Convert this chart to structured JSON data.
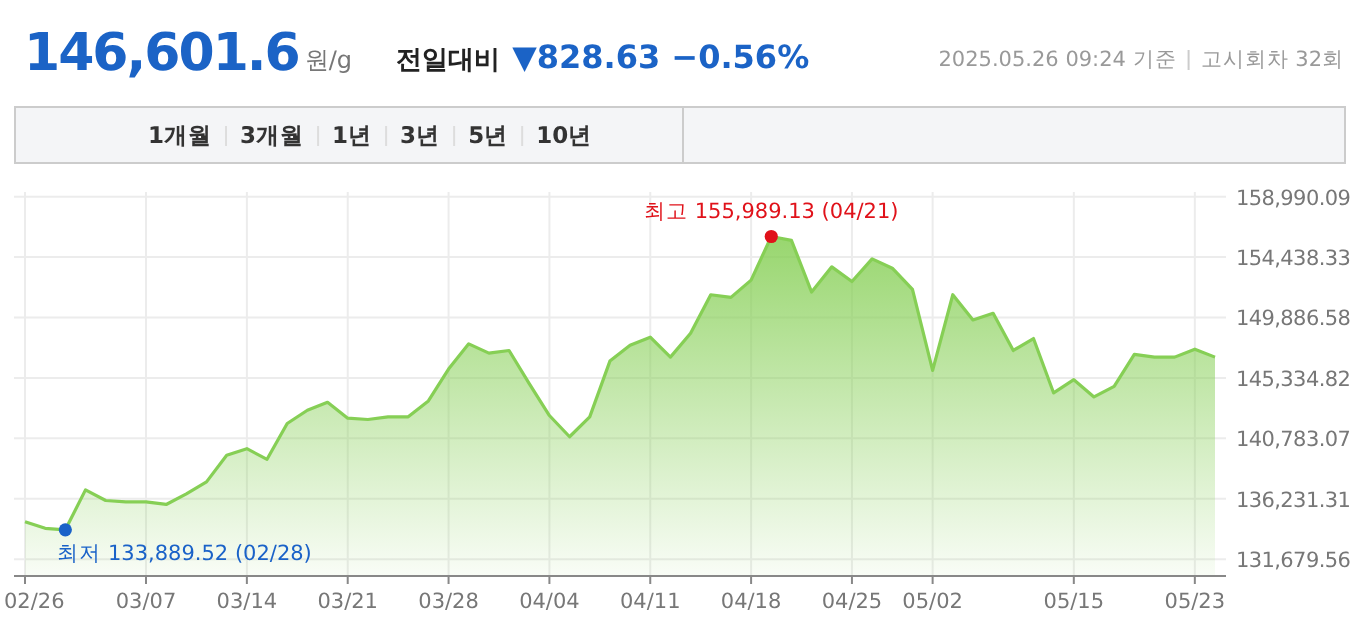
{
  "chart_data": {
    "type": "area",
    "title": "146,601.6",
    "annotations": [
      "최고 155,989.13 (04/21)",
      "최저 133,889.52 (02/28)",
      "원/g",
      "전일대비",
      "▼828.63 −0.56%",
      "2025.05.26 09:24 기준",
      "고시회차 32회",
      "1개월",
      "3개월",
      "1년",
      "3년",
      "5년",
      "10년"
    ],
    "categories": [
      "02/26",
      null,
      null,
      null,
      null,
      null,
      "03/07",
      null,
      null,
      null,
      null,
      "03/14",
      null,
      null,
      null,
      null,
      "03/21",
      null,
      null,
      null,
      null,
      "03/28",
      null,
      null,
      null,
      null,
      "04/04",
      null,
      null,
      null,
      null,
      "04/11",
      null,
      null,
      null,
      null,
      "04/18",
      null,
      null,
      null,
      null,
      "04/25",
      null,
      null,
      null,
      "05/02",
      null,
      null,
      null,
      null,
      null,
      null,
      "05/15",
      null,
      null,
      null,
      null,
      null,
      "05/23",
      null
    ],
    "series": [
      {
        "color": "#86cf55",
        "values": [
          134500,
          134000,
          133889.52,
          136900,
          136100,
          136000,
          136000,
          135800,
          136600,
          137500,
          139500,
          140000,
          139200,
          141900,
          142900,
          143500,
          142300,
          142200,
          142400,
          142400,
          143600,
          146000,
          147900,
          147200,
          147400,
          144900,
          142500,
          140900,
          142400,
          146600,
          147800,
          148400,
          146900,
          148700,
          151600,
          151400,
          152700,
          155989.13,
          155700,
          151800,
          153700,
          152600,
          154300,
          153600,
          152000,
          145900,
          151600,
          149700,
          150200,
          147400,
          148300,
          144200,
          145200,
          143900,
          144700,
          147100,
          146900,
          146900,
          147500,
          146900
        ]
      }
    ],
    "ylim": [
      130410,
      159340
    ],
    "yticks": [
      {
        "value": 131679.56,
        "label": "131,679.56"
      },
      {
        "value": 136231.31,
        "label": "136,231.31"
      },
      {
        "value": 140783.07,
        "label": "140,783.07"
      },
      {
        "value": 145334.82,
        "label": "145,334.82"
      },
      {
        "value": 149886.58,
        "label": "149,886.58"
      },
      {
        "value": 154438.33,
        "label": "154,438.33"
      },
      {
        "value": 158990.09,
        "label": "158,990.09"
      }
    ],
    "grid": true
  }
}
